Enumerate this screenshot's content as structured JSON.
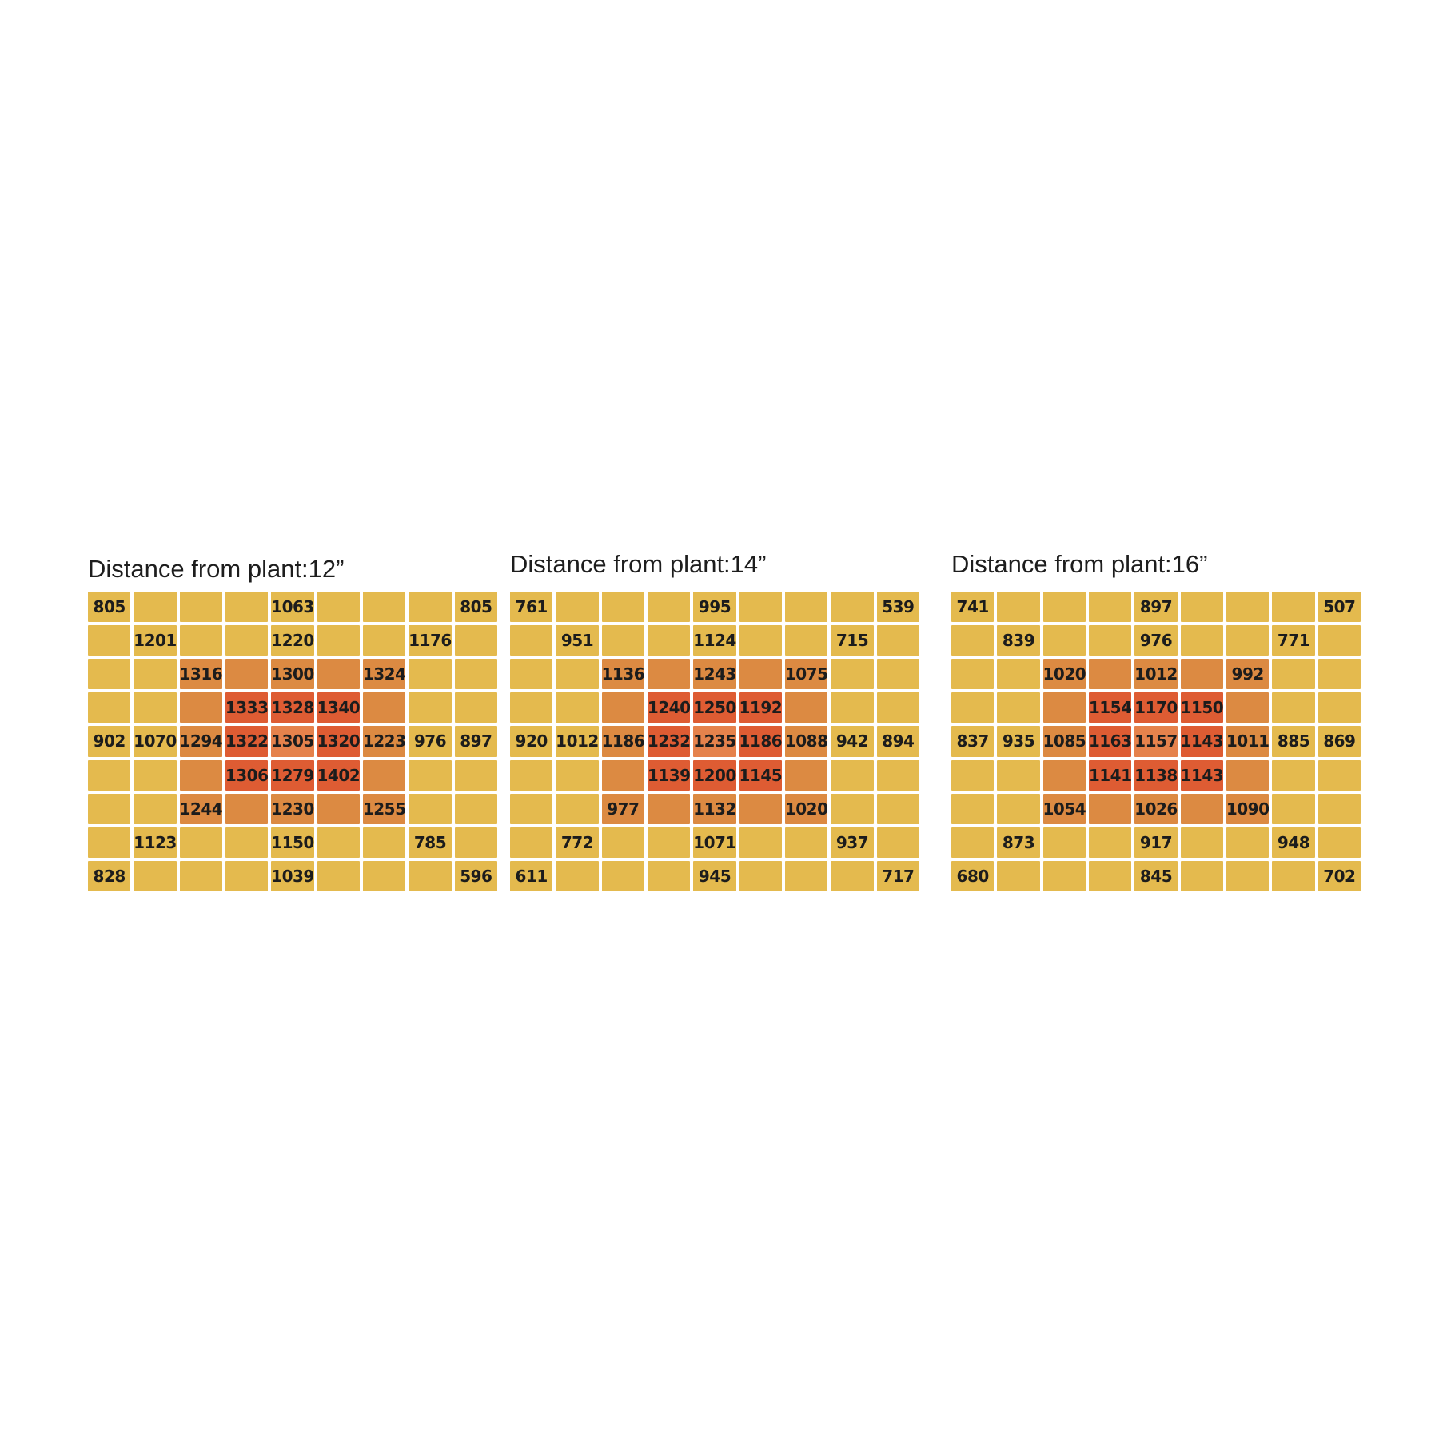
{
  "palette": {
    "y": "#e4ba4e",
    "o": "#dc8a42",
    "r": "#de5c33",
    "c": "#e5824c",
    "gap": "#ffffff",
    "text": "#1c1c1c",
    "title_text": "#1d1d1d",
    "background": "#ffffff"
  },
  "chart_data": [
    {
      "type": "heatmap",
      "title": "Distance from plant:12”",
      "grid_rows": 9,
      "grid_cols": 9,
      "values": [
        [
          "805",
          "",
          "",
          "",
          "1063",
          "",
          "",
          "",
          "805"
        ],
        [
          "",
          "1201",
          "",
          "",
          "1220",
          "",
          "",
          "1176",
          ""
        ],
        [
          "",
          "",
          "1316",
          "",
          "1300",
          "",
          "1324",
          "",
          ""
        ],
        [
          "",
          "",
          "",
          "1333",
          "1328",
          "1340",
          "",
          "",
          ""
        ],
        [
          "902",
          "1070",
          "1294",
          "1322",
          "1305",
          "1320",
          "1223",
          "976",
          "897"
        ],
        [
          "",
          "",
          "",
          "1306",
          "1279",
          "1402",
          "",
          "",
          ""
        ],
        [
          "",
          "",
          "1244",
          "",
          "1230",
          "",
          "1255",
          "",
          ""
        ],
        [
          "",
          "1123",
          "",
          "",
          "1150",
          "",
          "",
          "785",
          ""
        ],
        [
          "828",
          "",
          "",
          "",
          "1039",
          "",
          "",
          "",
          "596"
        ]
      ],
      "colors": [
        [
          "y",
          "y",
          "y",
          "y",
          "y",
          "y",
          "y",
          "y",
          "y"
        ],
        [
          "y",
          "y",
          "y",
          "y",
          "y",
          "y",
          "y",
          "y",
          "y"
        ],
        [
          "y",
          "y",
          "o",
          "o",
          "o",
          "o",
          "o",
          "y",
          "y"
        ],
        [
          "y",
          "y",
          "o",
          "r",
          "r",
          "r",
          "o",
          "y",
          "y"
        ],
        [
          "y",
          "y",
          "o",
          "r",
          "c",
          "r",
          "o",
          "y",
          "y"
        ],
        [
          "y",
          "y",
          "o",
          "r",
          "r",
          "r",
          "o",
          "y",
          "y"
        ],
        [
          "y",
          "y",
          "o",
          "o",
          "o",
          "o",
          "o",
          "y",
          "y"
        ],
        [
          "y",
          "y",
          "y",
          "y",
          "y",
          "y",
          "y",
          "y",
          "y"
        ],
        [
          "y",
          "y",
          "y",
          "y",
          "y",
          "y",
          "y",
          "y",
          "y"
        ]
      ]
    },
    {
      "type": "heatmap",
      "title": "Distance from plant:14”",
      "grid_rows": 9,
      "grid_cols": 9,
      "values": [
        [
          "761",
          "",
          "",
          "",
          "995",
          "",
          "",
          "",
          "539"
        ],
        [
          "",
          "951",
          "",
          "",
          "1124",
          "",
          "",
          "715",
          ""
        ],
        [
          "",
          "",
          "1136",
          "",
          "1243",
          "",
          "1075",
          "",
          ""
        ],
        [
          "",
          "",
          "",
          "1240",
          "1250",
          "1192",
          "",
          "",
          ""
        ],
        [
          "920",
          "1012",
          "1186",
          "1232",
          "1235",
          "1186",
          "1088",
          "942",
          "894"
        ],
        [
          "",
          "",
          "",
          "1139",
          "1200",
          "1145",
          "",
          "",
          ""
        ],
        [
          "",
          "",
          "977",
          "",
          "1132",
          "",
          "1020",
          "",
          ""
        ],
        [
          "",
          "772",
          "",
          "",
          "1071",
          "",
          "",
          "937",
          ""
        ],
        [
          "611",
          "",
          "",
          "",
          "945",
          "",
          "",
          "",
          "717"
        ]
      ],
      "colors": [
        [
          "y",
          "y",
          "y",
          "y",
          "y",
          "y",
          "y",
          "y",
          "y"
        ],
        [
          "y",
          "y",
          "y",
          "y",
          "y",
          "y",
          "y",
          "y",
          "y"
        ],
        [
          "y",
          "y",
          "o",
          "o",
          "o",
          "o",
          "o",
          "y",
          "y"
        ],
        [
          "y",
          "y",
          "o",
          "r",
          "r",
          "r",
          "o",
          "y",
          "y"
        ],
        [
          "y",
          "y",
          "o",
          "r",
          "c",
          "r",
          "o",
          "y",
          "y"
        ],
        [
          "y",
          "y",
          "o",
          "r",
          "r",
          "r",
          "o",
          "y",
          "y"
        ],
        [
          "y",
          "y",
          "o",
          "o",
          "o",
          "o",
          "o",
          "y",
          "y"
        ],
        [
          "y",
          "y",
          "y",
          "y",
          "y",
          "y",
          "y",
          "y",
          "y"
        ],
        [
          "y",
          "y",
          "y",
          "y",
          "y",
          "y",
          "y",
          "y",
          "y"
        ]
      ]
    },
    {
      "type": "heatmap",
      "title": "Distance from plant:16”",
      "grid_rows": 9,
      "grid_cols": 9,
      "values": [
        [
          "741",
          "",
          "",
          "",
          "897",
          "",
          "",
          "",
          "507"
        ],
        [
          "",
          "839",
          "",
          "",
          "976",
          "",
          "",
          "771",
          ""
        ],
        [
          "",
          "",
          "1020",
          "",
          "1012",
          "",
          "992",
          "",
          ""
        ],
        [
          "",
          "",
          "",
          "1154",
          "1170",
          "1150",
          "",
          "",
          ""
        ],
        [
          "837",
          "935",
          "1085",
          "1163",
          "1157",
          "1143",
          "1011",
          "885",
          "869"
        ],
        [
          "",
          "",
          "",
          "1141",
          "1138",
          "1143",
          "",
          "",
          ""
        ],
        [
          "",
          "",
          "1054",
          "",
          "1026",
          "",
          "1090",
          "",
          ""
        ],
        [
          "",
          "873",
          "",
          "",
          "917",
          "",
          "",
          "948",
          ""
        ],
        [
          "680",
          "",
          "",
          "",
          "845",
          "",
          "",
          "",
          "702"
        ]
      ],
      "colors": [
        [
          "y",
          "y",
          "y",
          "y",
          "y",
          "y",
          "y",
          "y",
          "y"
        ],
        [
          "y",
          "y",
          "y",
          "y",
          "y",
          "y",
          "y",
          "y",
          "y"
        ],
        [
          "y",
          "y",
          "o",
          "o",
          "o",
          "o",
          "o",
          "y",
          "y"
        ],
        [
          "y",
          "y",
          "o",
          "r",
          "r",
          "r",
          "o",
          "y",
          "y"
        ],
        [
          "y",
          "y",
          "o",
          "r",
          "c",
          "r",
          "o",
          "y",
          "y"
        ],
        [
          "y",
          "y",
          "o",
          "r",
          "r",
          "r",
          "o",
          "y",
          "y"
        ],
        [
          "y",
          "y",
          "o",
          "o",
          "o",
          "o",
          "o",
          "y",
          "y"
        ],
        [
          "y",
          "y",
          "y",
          "y",
          "y",
          "y",
          "y",
          "y",
          "y"
        ],
        [
          "y",
          "y",
          "y",
          "y",
          "y",
          "y",
          "y",
          "y",
          "y"
        ]
      ]
    }
  ]
}
